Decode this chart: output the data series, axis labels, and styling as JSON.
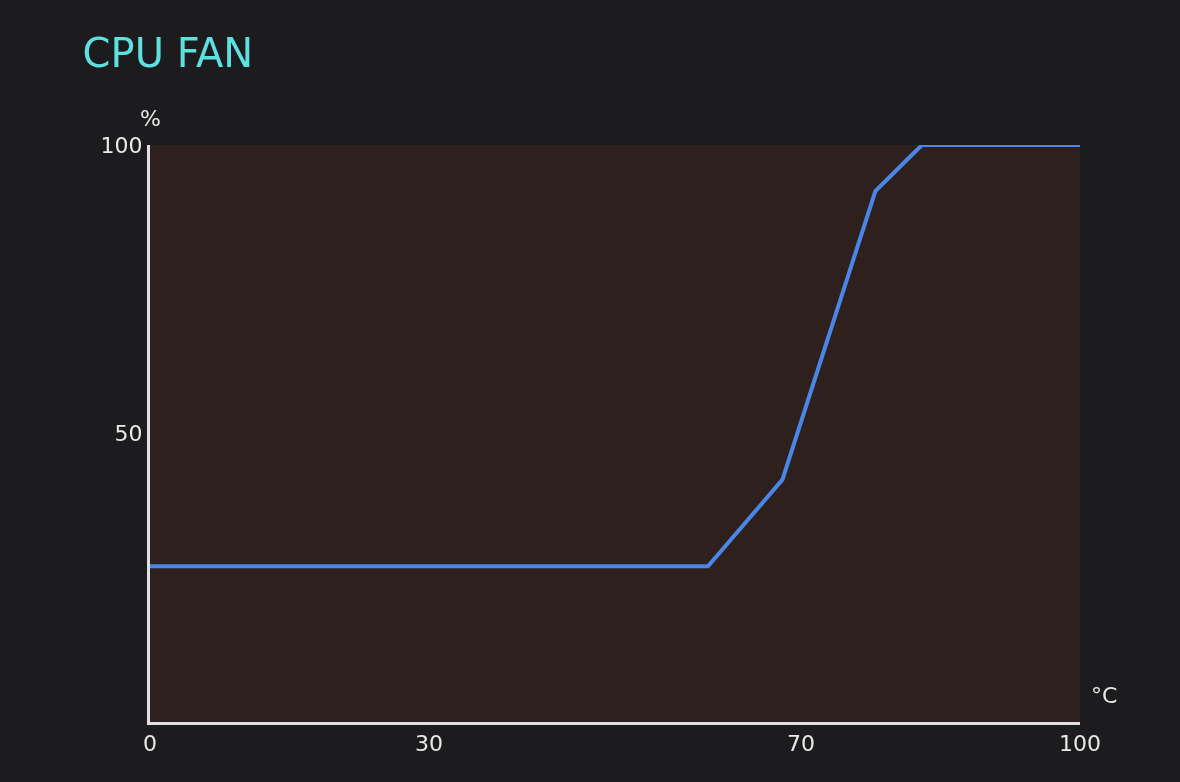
{
  "chart_data": {
    "type": "line",
    "title": "CPU FAN",
    "xlabel": "°C",
    "ylabel": "%",
    "x": [
      0,
      60,
      68,
      78,
      83,
      100
    ],
    "series": [
      {
        "color": "#4a86e8",
        "values": [
          27,
          27,
          42,
          92,
          100,
          100
        ]
      }
    ],
    "xlim": [
      0,
      100
    ],
    "xticks": [
      0,
      30,
      70,
      100
    ],
    "ylim": [
      0,
      100
    ],
    "yticks": [
      50,
      100
    ],
    "marker": "none",
    "line_style": "solid"
  }
}
